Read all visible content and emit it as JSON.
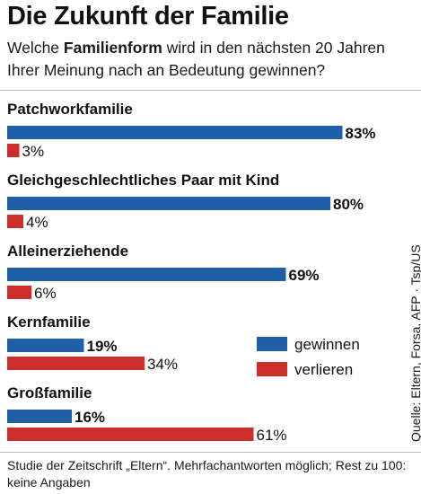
{
  "title": "Die Zukunft der Familie",
  "subtitle": {
    "before": "Welche ",
    "bold": "Familienform",
    "after": " wird in den nächsten 20 Jahren Ihrer Meinung nach an Bedeutung gewinnen?"
  },
  "note": "Studie der Zeitschrift „Eltern“. Mehrfachantworten möglich; Rest zu 100: keine Angaben",
  "source": "Quelle: Eltern, Forsa, AFP · Tsp/US",
  "colors": {
    "gewinnen": "#1f5fa8",
    "verlieren": "#cc2e2e"
  },
  "chart_data": {
    "type": "bar",
    "orientation": "horizontal",
    "unit": "%",
    "categories": [
      "Patchworkfamilie",
      "Gleichgeschlechtliches Paar mit Kind",
      "Alleinerziehende",
      "Kernfamilie",
      "Großfamilie"
    ],
    "series": [
      {
        "name": "gewinnen",
        "values": [
          83,
          80,
          69,
          19,
          16
        ],
        "color": "#1f5fa8"
      },
      {
        "name": "verlieren",
        "values": [
          3,
          4,
          6,
          34,
          61
        ],
        "color": "#cc2e2e"
      }
    ],
    "legend": {
      "position": "bottom-right"
    },
    "grid": false
  }
}
